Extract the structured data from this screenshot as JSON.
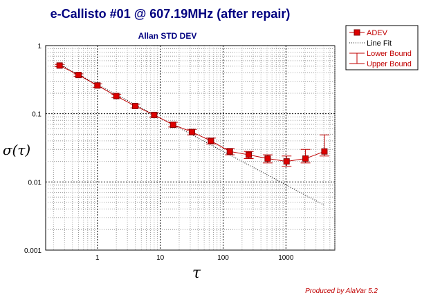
{
  "chart_data": {
    "type": "scatter",
    "title": "e-Callisto #01 @ 607.19MHz (after repair)",
    "subtitle": "Allan STD DEV",
    "xlabel": "τ",
    "ylabel": "σ(τ)",
    "footer": "Produced by AlaVar 5.2",
    "x_scale": "log",
    "y_scale": "log",
    "xlim": [
      0.15,
      6000
    ],
    "ylim": [
      0.001,
      1
    ],
    "grid": true,
    "x_ticks": [
      {
        "value": 1,
        "label": "1"
      },
      {
        "value": 10,
        "label": "10"
      },
      {
        "value": 100,
        "label": "100"
      },
      {
        "value": 1000,
        "label": "1000"
      }
    ],
    "y_ticks": [
      {
        "value": 1,
        "label": "1"
      },
      {
        "value": 0.1,
        "label": "0.1"
      },
      {
        "value": 0.01,
        "label": "0.01"
      },
      {
        "value": 0.001,
        "label": "0.001"
      }
    ],
    "legend_position": "top-right, outside plot",
    "legend": [
      {
        "label": "ADEV",
        "marker": "square",
        "color": "#c00000"
      },
      {
        "label": "Line Fit",
        "style": "dotted",
        "color": "#000000"
      },
      {
        "label": "Lower Bound",
        "color": "#c00000"
      },
      {
        "label": "Upper Bound",
        "color": "#c00000"
      }
    ],
    "series": [
      {
        "name": "ADEV",
        "color": "#c00000",
        "x": [
          0.25,
          0.5,
          1,
          2,
          4,
          8,
          16,
          32,
          64,
          128,
          256,
          512,
          1024,
          2048,
          4096
        ],
        "y": [
          0.51,
          0.37,
          0.26,
          0.182,
          0.13,
          0.096,
          0.069,
          0.054,
          0.04,
          0.028,
          0.025,
          0.022,
          0.02,
          0.022,
          0.028
        ],
        "lower": [
          0.49,
          0.355,
          0.245,
          0.172,
          0.122,
          0.089,
          0.064,
          0.049,
          0.036,
          0.025,
          0.022,
          0.019,
          0.017,
          0.019,
          0.024
        ],
        "upper": [
          0.53,
          0.385,
          0.275,
          0.192,
          0.138,
          0.103,
          0.075,
          0.059,
          0.044,
          0.031,
          0.028,
          0.025,
          0.024,
          0.03,
          0.049
        ]
      },
      {
        "name": "Line Fit",
        "color": "#000000",
        "x": [
          0.25,
          4000
        ],
        "y": [
          0.53,
          0.0046
        ]
      }
    ]
  }
}
